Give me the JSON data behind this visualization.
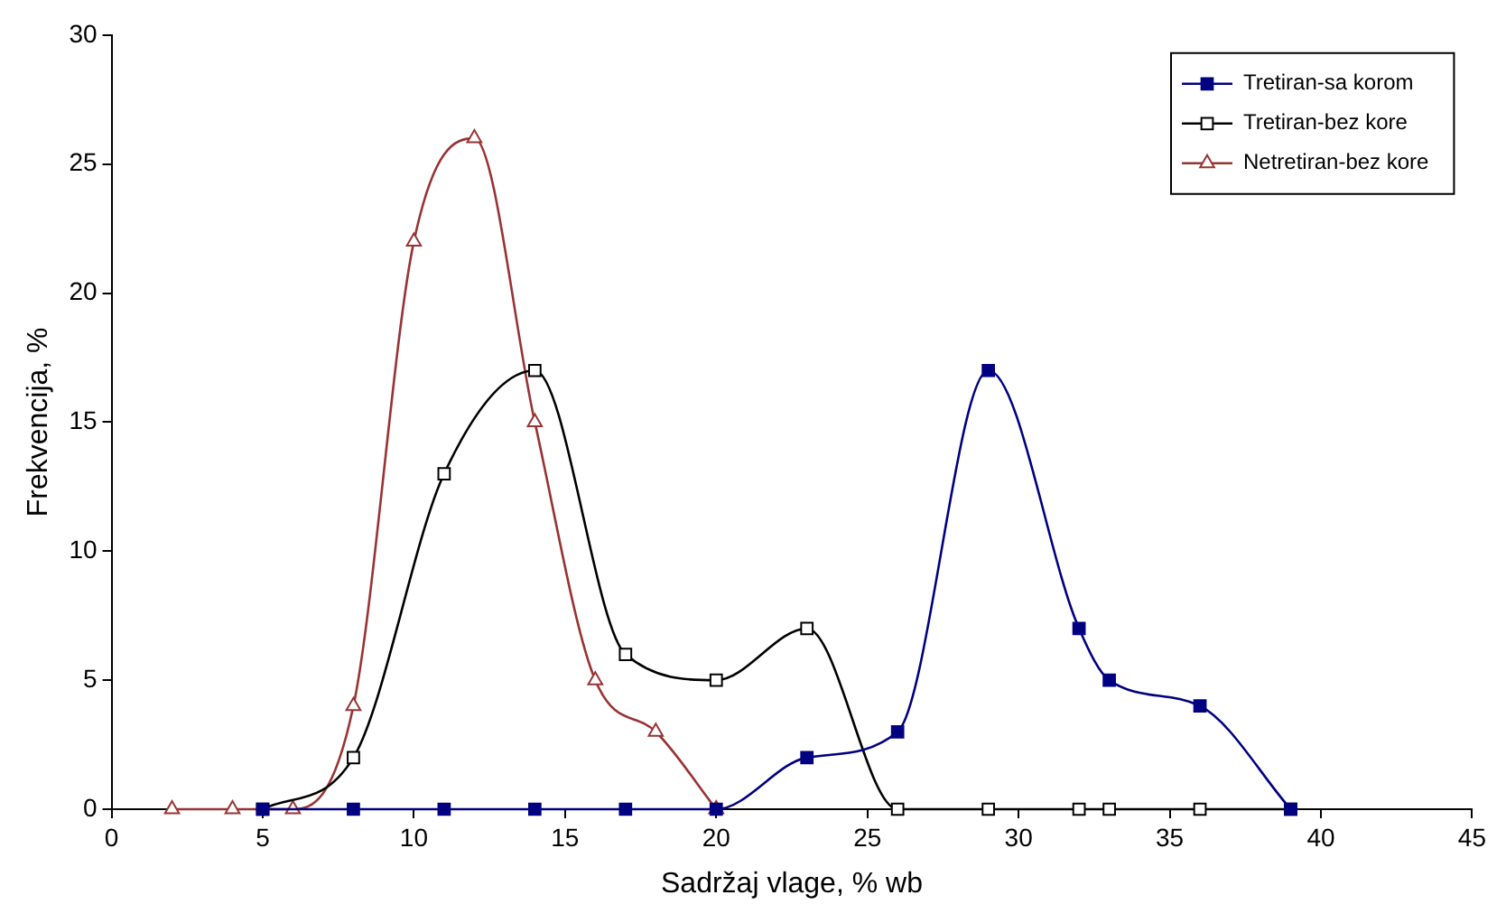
{
  "chart_data": {
    "type": "line",
    "xlabel": "Sadržaj vlage, % wb",
    "ylabel": "Frekvencija, %",
    "xlim": [
      0,
      45
    ],
    "xticks": [
      0,
      5,
      10,
      15,
      20,
      25,
      30,
      35,
      40,
      45
    ],
    "ylim": [
      0,
      30
    ],
    "yticks": [
      0,
      5,
      10,
      15,
      20,
      25,
      30
    ],
    "grid": false,
    "legend": "top right",
    "series": [
      {
        "name": "Tretiran-sa korom",
        "color": "#000080",
        "marker": "square",
        "x": [
          5,
          8,
          11,
          14,
          17,
          20,
          23,
          26,
          29,
          32,
          33,
          36,
          39
        ],
        "values": [
          0,
          0,
          0,
          0,
          0,
          0,
          2,
          3,
          17,
          7,
          5,
          4,
          0
        ]
      },
      {
        "name": "Tretiran-bez kore",
        "color": "#000000",
        "marker": "square",
        "x": [
          5,
          8,
          11,
          14,
          17,
          20,
          23,
          26,
          29,
          32,
          33,
          36,
          39
        ],
        "values": [
          0,
          2,
          13,
          17,
          6,
          5,
          7,
          0,
          0,
          0,
          0,
          0,
          0
        ]
      },
      {
        "name": "Netretiran-bez kore",
        "color": "#993333",
        "marker": "triangle",
        "x": [
          2,
          4,
          6,
          8,
          10,
          12,
          14,
          16,
          18,
          20
        ],
        "values": [
          0,
          0,
          0,
          4,
          22,
          26,
          15,
          5,
          3,
          0
        ]
      }
    ]
  }
}
